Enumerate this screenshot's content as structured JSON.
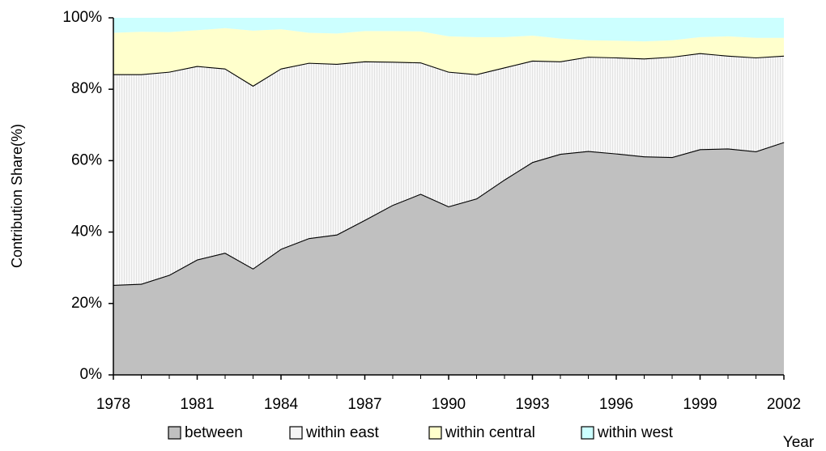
{
  "chart_data": {
    "type": "stacked_area",
    "y_label": "Contribution Share(%)",
    "x_label": "Year",
    "x": [
      1978,
      1979,
      1980,
      1981,
      1982,
      1983,
      1984,
      1985,
      1986,
      1987,
      1988,
      1989,
      1990,
      1991,
      1992,
      1993,
      1994,
      1995,
      1996,
      1997,
      1998,
      1999,
      2000,
      2001,
      2002
    ],
    "xlim": [
      1978,
      2002
    ],
    "xticks": [
      1978,
      1981,
      1984,
      1987,
      1990,
      1993,
      1996,
      1999,
      2002
    ],
    "ylim": [
      0,
      100
    ],
    "yticks": [
      {
        "value": 0,
        "label": "0%"
      },
      {
        "value": 20,
        "label": "20%"
      },
      {
        "value": 40,
        "label": "40%"
      },
      {
        "value": 60,
        "label": "60%"
      },
      {
        "value": 80,
        "label": "80%"
      },
      {
        "value": 100,
        "label": "100%"
      }
    ],
    "series": [
      {
        "name": "between",
        "color": "#c0c0c0",
        "values": [
          25.2,
          25.5,
          28,
          32.3,
          34.2,
          29.8,
          35.3,
          38.3,
          39.3,
          43.4,
          47.6,
          50.7,
          47.2,
          49.4,
          54.7,
          59.6,
          61.9,
          62.7,
          62,
          61.2,
          61,
          63.2,
          63.4,
          62.6,
          65.2
        ]
      },
      {
        "name": "within east",
        "color": "#f4f4f4",
        "values": [
          59.0,
          58.7,
          56.9,
          54.2,
          51.6,
          51.2,
          50.5,
          49.1,
          47.8,
          44.4,
          40.1,
          36.8,
          37.7,
          34.8,
          31.4,
          28.4,
          25.9,
          26.4,
          26.9,
          27.4,
          28.1,
          26.9,
          26.0,
          26.3,
          24.2
        ]
      },
      {
        "name": "within central",
        "color": "#ffffcc",
        "values": [
          11.6,
          11.9,
          11.1,
          10.0,
          11.3,
          15.4,
          11.0,
          8.4,
          8.5,
          8.5,
          8.6,
          8.7,
          9.9,
          10.4,
          8.5,
          7.0,
          6.4,
          4.6,
          4.7,
          4.8,
          4.6,
          4.5,
          5.4,
          5.5,
          5.0
        ]
      },
      {
        "name": "within west",
        "color": "#ccffff",
        "values": [
          4.2,
          3.9,
          4.0,
          3.5,
          2.9,
          3.6,
          3.2,
          4.2,
          4.4,
          3.7,
          3.7,
          3.8,
          5.2,
          5.4,
          5.4,
          5.0,
          5.8,
          6.3,
          6.4,
          6.6,
          6.3,
          5.4,
          5.2,
          5.6,
          5.6
        ]
      }
    ]
  }
}
